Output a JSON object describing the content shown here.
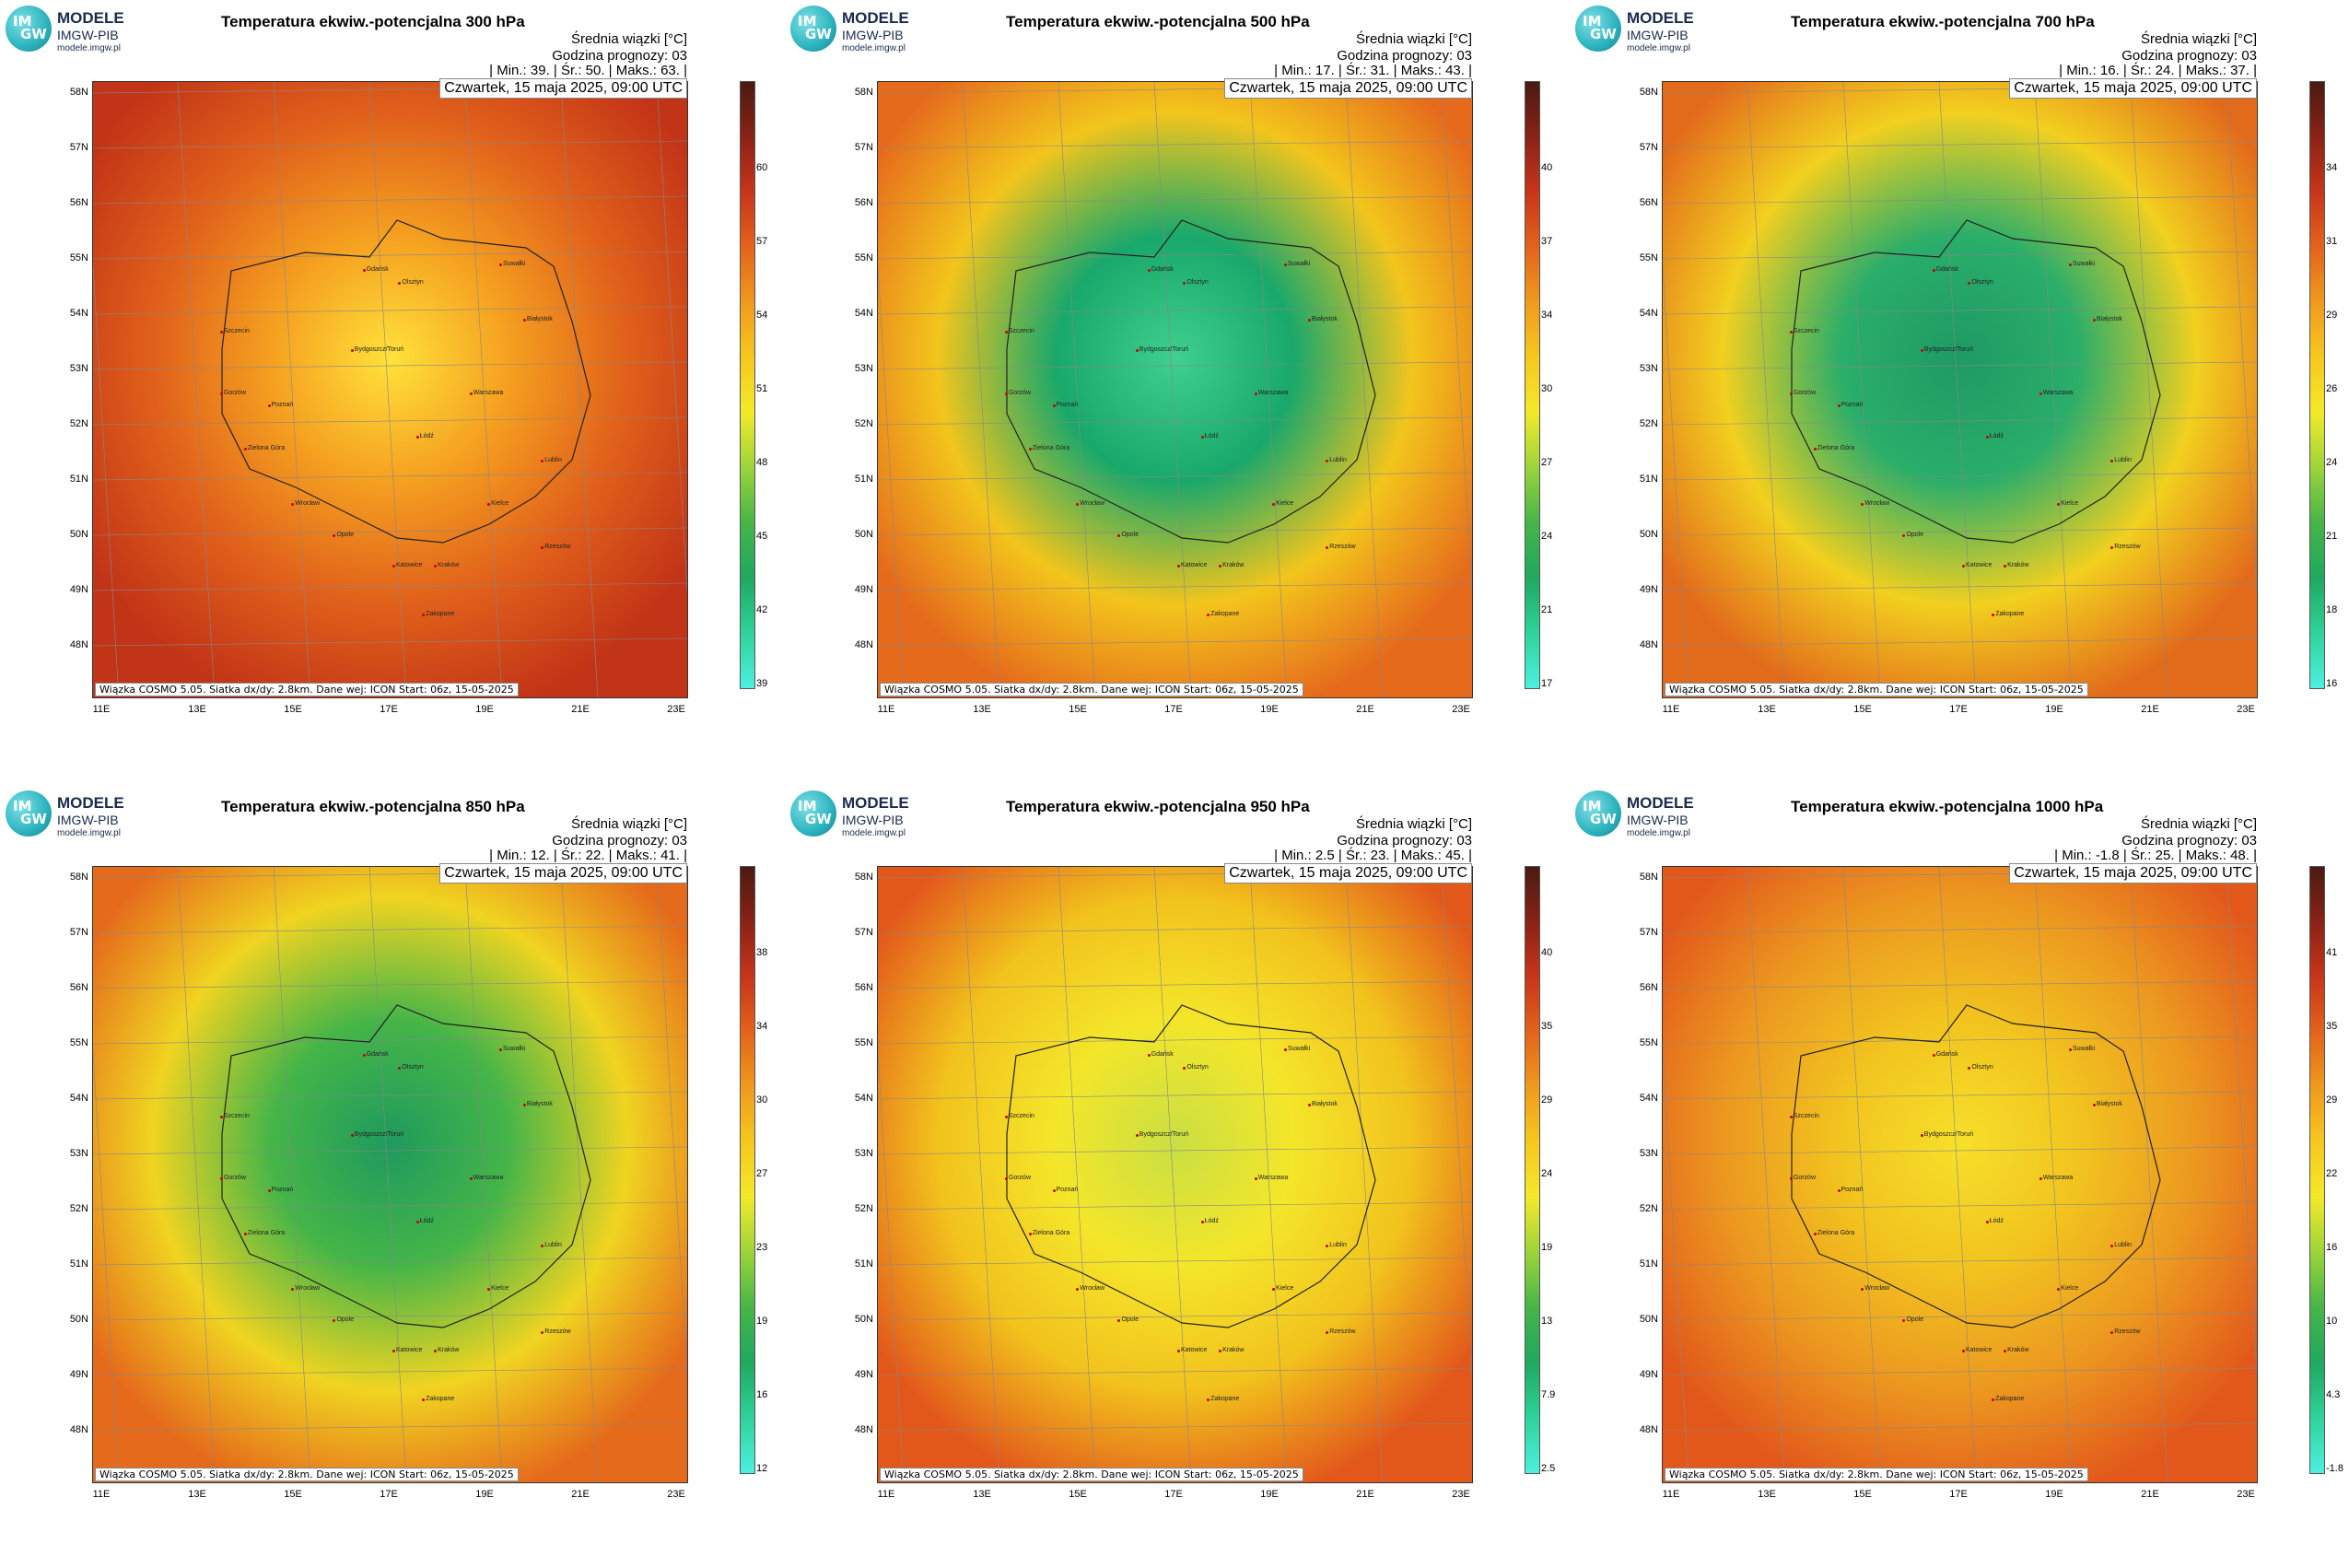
{
  "logo": {
    "name": "MODELE",
    "sub": "IMGW-PIB",
    "url": "modele.imgw.pl",
    "im": "IM",
    "gw": "GW"
  },
  "header": {
    "subtitle": "Średnia wiązki [°C]",
    "forecast_hour": "Godzina prognozy: 03",
    "date": "Czwartek, 15 maja 2025, 09:00 UTC",
    "footer": "Wiązka COSMO 5.05. Siatka dx/dy: 2.8km. Dane wej: ICON Start: 06z, 15-05-2025"
  },
  "axes": {
    "lat_labels": [
      "58N",
      "57N",
      "56N",
      "55N",
      "54N",
      "53N",
      "52N",
      "51N",
      "50N",
      "49N",
      "48N"
    ],
    "lon_labels": [
      "11E",
      "13E",
      "15E",
      "17E",
      "19E",
      "21E",
      "23E"
    ]
  },
  "cities": [
    "Gdańsk",
    "Olsztyn",
    "Suwałki",
    "Szczecin",
    "Bydgoszcz/Toruń",
    "Białystok",
    "Gorzów",
    "Poznań",
    "Warszawa",
    "Zielona Góra",
    "Łódź",
    "Lublin",
    "Wrocław",
    "Kielce",
    "Opole",
    "Rzeszów",
    "Katowice",
    "Kraków",
    "Zakopane"
  ],
  "panels": [
    {
      "title": "Temperatura ekwiw.-potencjalna 300 hPa",
      "stats": "| Min.:   39. | Śr.:   50. | Maks.:   63. |",
      "colorbar_ticks": [
        "60",
        "57",
        "54",
        "51",
        "48",
        "45",
        "42",
        "39"
      ],
      "palette": [
        "#ffe23a",
        "#f5a020",
        "#e0601b",
        "#c23417"
      ],
      "bg": "#ffd51f"
    },
    {
      "title": "Temperatura ekwiw.-potencjalna 500 hPa",
      "stats": "| Min.:   17. | Śr.:   31. | Maks.:   43. |",
      "colorbar_ticks": [
        "40",
        "37",
        "34",
        "30",
        "27",
        "24",
        "21",
        "17"
      ],
      "palette": [
        "#3fcf8e",
        "#19a86b",
        "#f3c51c",
        "#e56a1c"
      ],
      "bg": "#ee8a1f"
    },
    {
      "title": "Temperatura ekwiw.-potencjalna 700 hPa",
      "stats": "| Min.:   16. | Śr.:   24. | Maks.:   37. |",
      "colorbar_ticks": [
        "34",
        "31",
        "29",
        "26",
        "24",
        "21",
        "18",
        "16"
      ],
      "palette": [
        "#1e9a64",
        "#2aae6a",
        "#f2d01f",
        "#e26a1b"
      ],
      "bg": "#ee8a1f"
    },
    {
      "title": "Temperatura ekwiw.-potencjalna 850 hPa",
      "stats": "| Min.:   12. | Śr.:   22. | Maks.:   41. |",
      "colorbar_ticks": [
        "38",
        "34",
        "30",
        "27",
        "23",
        "19",
        "16",
        "12"
      ],
      "palette": [
        "#1f9a5e",
        "#45b548",
        "#f0d421",
        "#e56a1b"
      ],
      "bg": "#4cb845"
    },
    {
      "title": "Temperatura ekwiw.-potencjalna 950 hPa",
      "stats": "| Min.:   2.5 | Śr.:   23. | Maks.:   45. |",
      "colorbar_ticks": [
        "40",
        "35",
        "29",
        "24",
        "19",
        "13",
        "7.9",
        "2.5"
      ],
      "palette": [
        "#c9df43",
        "#f4e62a",
        "#f2c21d",
        "#e2581b"
      ],
      "bg": "#f4e62a"
    },
    {
      "title": "Temperatura ekwiw.-potencjalna 1000 hPa",
      "stats": "| Min.:   -1.8 | Śr.:   25. | Maks.:   48. |",
      "colorbar_ticks": [
        "41",
        "35",
        "29",
        "22",
        "16",
        "10",
        "4.3",
        "-1.8"
      ],
      "palette": [
        "#f6e02a",
        "#f2c41f",
        "#ec9820",
        "#e2581b"
      ],
      "bg": "#f2c21d"
    }
  ]
}
